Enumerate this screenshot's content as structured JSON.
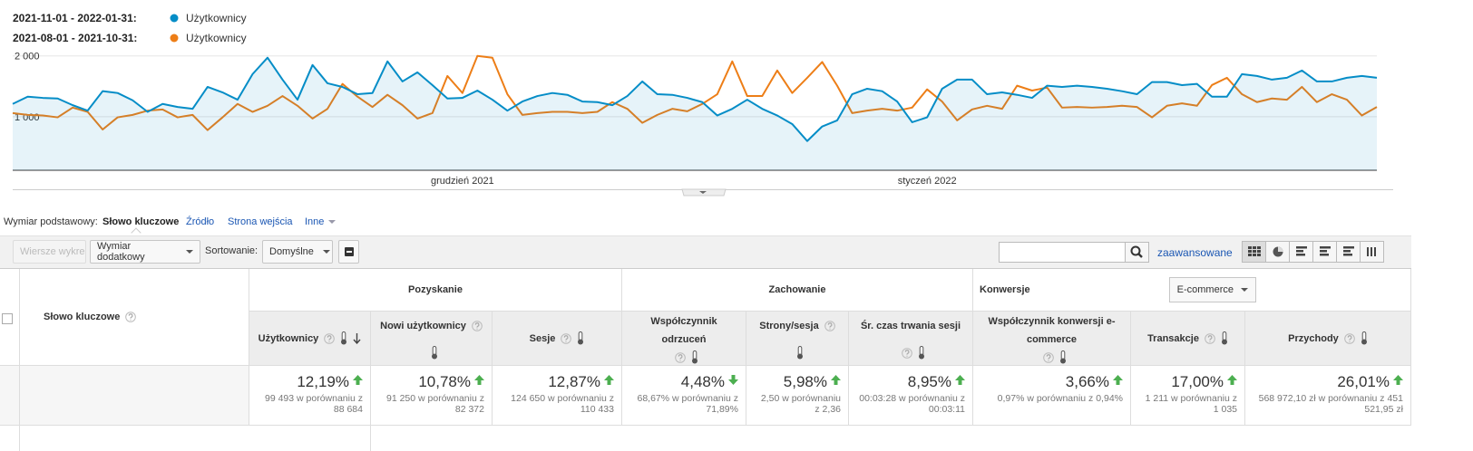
{
  "chart_data": {
    "type": "line",
    "series": [
      {
        "range": "2021-11-01 - 2022-01-31:",
        "name": "Użytkownicy",
        "color": "#058dc7",
        "values": [
          1210,
          1330,
          1310,
          1300,
          1190,
          1100,
          1420,
          1390,
          1270,
          1080,
          1210,
          1160,
          1130,
          1490,
          1400,
          1280,
          1700,
          1970,
          1610,
          1280,
          1850,
          1550,
          1490,
          1370,
          1390,
          1910,
          1580,
          1730,
          1520,
          1300,
          1310,
          1430,
          1280,
          1100,
          1250,
          1340,
          1390,
          1360,
          1250,
          1240,
          1190,
          1340,
          1580,
          1370,
          1360,
          1310,
          1240,
          1020,
          1130,
          1280,
          1130,
          1020,
          880,
          600,
          840,
          940,
          1370,
          1460,
          1420,
          1250,
          910,
          990,
          1460,
          1610,
          1610,
          1370,
          1400,
          1360,
          1310,
          1510,
          1490,
          1510,
          1490,
          1460,
          1420,
          1370,
          1570,
          1570,
          1520,
          1540,
          1330,
          1330,
          1700,
          1670,
          1610,
          1640,
          1760,
          1580,
          1580,
          1640,
          1670,
          1640
        ]
      },
      {
        "range": "2021-08-01 - 2021-10-31:",
        "name": "Użytkownicy",
        "color": "#ed7e17",
        "values": [
          1060,
          1030,
          1020,
          990,
          1150,
          1080,
          790,
          990,
          1030,
          1100,
          1120,
          990,
          1030,
          780,
          990,
          1210,
          1080,
          1180,
          1340,
          1180,
          970,
          1130,
          1540,
          1330,
          1160,
          1360,
          1190,
          970,
          1060,
          1670,
          1390,
          2000,
          1970,
          1370,
          1030,
          1060,
          1080,
          1080,
          1060,
          1080,
          1240,
          1130,
          900,
          1030,
          1130,
          1090,
          1210,
          1370,
          1910,
          1340,
          1340,
          1760,
          1390,
          1640,
          1900,
          1510,
          1060,
          1100,
          1130,
          1100,
          1150,
          1450,
          1250,
          940,
          1120,
          1180,
          1130,
          1510,
          1430,
          1480,
          1150,
          1160,
          1150,
          1160,
          1180,
          1160,
          990,
          1180,
          1220,
          1180,
          1520,
          1640,
          1370,
          1240,
          1300,
          1280,
          1490,
          1240,
          1370,
          1280,
          1020,
          1160
        ]
      }
    ],
    "x": [
      null,
      null,
      null,
      null,
      null,
      null,
      null,
      null,
      null,
      null,
      null,
      null,
      null,
      null,
      null,
      null,
      null,
      null,
      null,
      null,
      null,
      null,
      null,
      null,
      null,
      null,
      null,
      null,
      null,
      null,
      "grudzień 2021",
      null,
      null,
      null,
      null,
      null,
      null,
      null,
      null,
      null,
      null,
      null,
      null,
      null,
      null,
      null,
      null,
      null,
      null,
      null,
      null,
      null,
      null,
      null,
      null,
      null,
      null,
      null,
      null,
      null,
      null,
      "styczeń 2022",
      null,
      null,
      null,
      null,
      null,
      null,
      null,
      null,
      null,
      null,
      null,
      null,
      null,
      null,
      null,
      null,
      null,
      null,
      null,
      null,
      null,
      null,
      null,
      null,
      null,
      null,
      null,
      null,
      null,
      null
    ],
    "ylim": [
      120,
      2100
    ],
    "yticks": [
      {
        "value": 1000,
        "label": "1 000"
      },
      {
        "value": 2000,
        "label": "2 000"
      }
    ],
    "grid": true,
    "area": true
  },
  "dimension_bar": {
    "label": "Wymiar podstawowy:",
    "options": [
      "Słowo kluczowe",
      "Źródło",
      "Strona wejścia",
      "Inne"
    ]
  },
  "toolbar": {
    "chart_rows": "Wiersze wykresu",
    "secondary_dimension": "Wymiar dodatkowy",
    "sort_label": "Sortowanie:",
    "sort_value": "Domyślne",
    "advanced": "zaawansowane"
  },
  "table": {
    "key_header": "Słowo kluczowe",
    "groups": [
      {
        "label": "Pozyskanie",
        "columns": [
          {
            "label": "Użytkownicy",
            "change": "12,19%",
            "direction": "up",
            "comparison": "99 493 w porównaniu z 88 684"
          },
          {
            "label": "Nowi użytkownicy",
            "change": "10,78%",
            "direction": "up",
            "comparison": "91 250 w porównaniu z 82 372"
          },
          {
            "label": "Sesje",
            "change": "12,87%",
            "direction": "up",
            "comparison": "124 650 w porównaniu z 110 433"
          }
        ]
      },
      {
        "label": "Zachowanie",
        "columns": [
          {
            "label": "Współczynnik odrzuceń",
            "change": "4,48%",
            "direction": "down",
            "comparison": "68,67% w porównaniu z 71,89%"
          },
          {
            "label": "Strony/sesja",
            "change": "5,98%",
            "direction": "up",
            "comparison": "2,50 w porównaniu z 2,36"
          },
          {
            "label": "Śr. czas trwania sesji",
            "change": "8,95%",
            "direction": "up",
            "comparison": "00:03:28 w porównaniu z 00:03:11"
          }
        ]
      },
      {
        "label": "Konwersje",
        "dropdown": "E-commerce",
        "columns": [
          {
            "label": "Współczynnik konwersji e-commerce",
            "change": "3,66%",
            "direction": "up",
            "comparison": "0,97% w porównaniu z 0,94%"
          },
          {
            "label": "Transakcje",
            "change": "17,00%",
            "direction": "up",
            "comparison": "1 211 w porównaniu z 1 035"
          },
          {
            "label": "Przychody",
            "change": "26,01%",
            "direction": "up",
            "comparison": "568 972,10 zł w porównaniu z 451 521,95 zł"
          }
        ]
      }
    ]
  }
}
